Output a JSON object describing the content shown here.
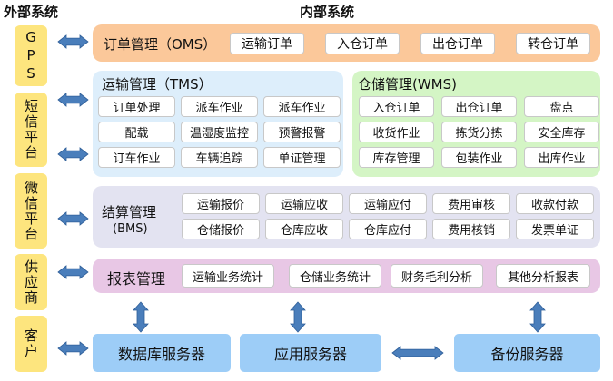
{
  "headers": {
    "external": "外部系统",
    "internal": "内部系统"
  },
  "external_systems": [
    "GPS",
    "短信平台",
    "微信平台",
    "供应商",
    "客户"
  ],
  "oms": {
    "title": "订单管理（OMS）",
    "items": [
      "运输订单",
      "入仓订单",
      "出仓订单",
      "转仓订单"
    ]
  },
  "tms": {
    "title": "运输管理（TMS）",
    "items": [
      "订单处理",
      "派车作业",
      "派车作业",
      "配载",
      "温湿度监控",
      "预警报警",
      "订车作业",
      "车辆追踪",
      "单证管理"
    ]
  },
  "wms": {
    "title": "仓储管理(WMS)",
    "items": [
      "入仓订单",
      "出仓订单",
      "盘点",
      "收货作业",
      "拣货分拣",
      "安全库存",
      "库存管理",
      "包装作业",
      "出库作业"
    ]
  },
  "bms": {
    "title": "结算管理",
    "subtitle": "(BMS)",
    "items": [
      "运输报价",
      "运输应收",
      "运输应付",
      "费用审核",
      "收款付款",
      "仓储报价",
      "仓库应收",
      "仓库应付",
      "费用核销",
      "发票单证"
    ]
  },
  "reports": {
    "title": "报表管理",
    "items": [
      "运输业务统计",
      "仓储业务统计",
      "财务毛利分析",
      "其他分析报表"
    ]
  },
  "servers": [
    "数据库服务器",
    "应用服务器",
    "备份服务器"
  ],
  "colors": {
    "external": "#fde57e",
    "oms": "#fbc89a",
    "tms": "#ddeefb",
    "wms": "#d4f5c5",
    "bms": "#e3e3f1",
    "reports": "#e8c7e5",
    "servers": "#9dcdf7",
    "arrow": "#4a7ebb"
  }
}
